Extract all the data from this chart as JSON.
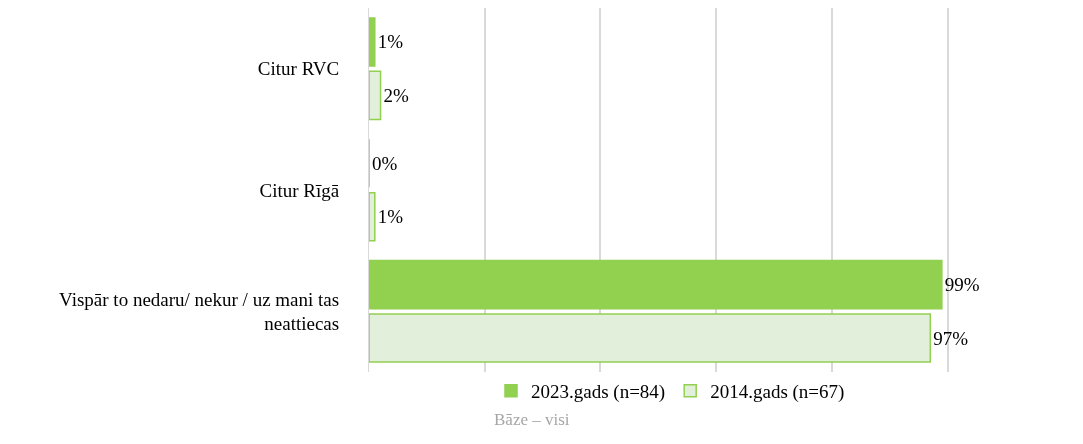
{
  "chart_data": {
    "type": "bar",
    "orientation": "horizontal",
    "categories": [
      "Citur RVC",
      "Citur Rīgā",
      "Vispār to nedaru/ nekur / uz mani tas neattiecas"
    ],
    "series": [
      {
        "name": "2023.gads (n=84)",
        "color": "#92d050",
        "values": [
          1,
          0,
          99
        ],
        "value_labels": [
          "1%",
          "0%",
          "99%"
        ]
      },
      {
        "name": "2014.gads (n=67)",
        "color": "#e2efda",
        "values": [
          2,
          1,
          97
        ],
        "value_labels": [
          "2%",
          "1%",
          "97%"
        ]
      }
    ],
    "tick_labels": "y",
    "grid": "x",
    "legend": "bottom",
    "annotations": [
      "Bāze – visi"
    ]
  }
}
